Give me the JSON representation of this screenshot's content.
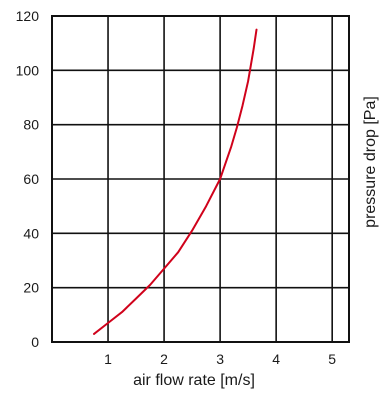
{
  "chart_data": {
    "type": "line",
    "xlabel": "air flow rate [m/s]",
    "ylabel": "pressure drop [Pa]",
    "xlim": [
      0,
      5.3
    ],
    "ylim": [
      0,
      120
    ],
    "x_ticks": [
      1,
      2,
      3,
      4,
      5
    ],
    "y_ticks": [
      0,
      20,
      40,
      60,
      80,
      100,
      120
    ],
    "grid": true,
    "line_color": "#d0021b",
    "series": [
      {
        "x": [
          0.75,
          1.0,
          1.25,
          1.5,
          1.75,
          2.0,
          2.25,
          2.5,
          2.75,
          3.0,
          3.1,
          3.2,
          3.3,
          3.4,
          3.5,
          3.55,
          3.6,
          3.65
        ],
        "y": [
          3,
          7,
          11,
          16,
          21,
          27,
          33,
          41,
          50,
          60,
          66,
          72,
          79,
          87,
          96,
          102,
          108,
          115
        ]
      }
    ]
  }
}
